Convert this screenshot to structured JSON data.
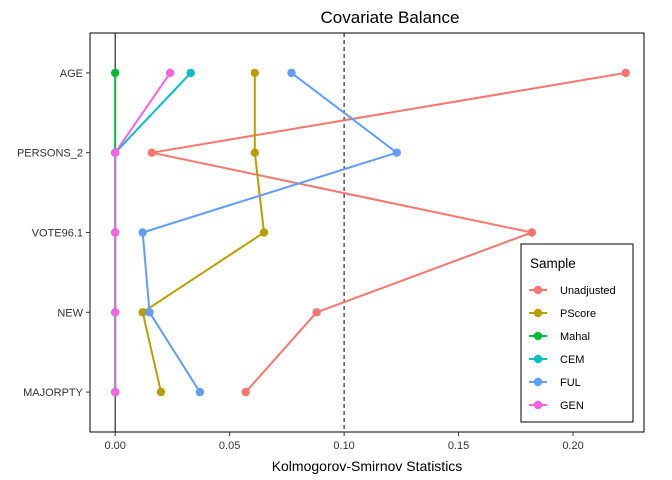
{
  "chart_data": {
    "type": "line",
    "title": "Covariate Balance",
    "xlabel": "Kolmogorov-Smirnov Statistics",
    "ylabel": "",
    "xlim": [
      -0.011,
      0.231
    ],
    "x_ticks": [
      0.0,
      0.05,
      0.1,
      0.15,
      0.2
    ],
    "x_tick_labels": [
      "0.00",
      "0.05",
      "0.10",
      "0.15",
      "0.20"
    ],
    "categories": [
      "AGE",
      "PERSONS_2",
      "VOTE96.1",
      "NEW",
      "MAJORPTY"
    ],
    "reference_lines": [
      {
        "x": 0.0,
        "style": "solid"
      },
      {
        "x": 0.1,
        "style": "dashed"
      }
    ],
    "legend_title": "Sample",
    "legend_position": "right",
    "grid": false,
    "series": [
      {
        "name": "Unadjusted",
        "color": "#F8766D",
        "values": [
          0.223,
          0.016,
          0.182,
          0.088,
          0.057
        ]
      },
      {
        "name": "PScore",
        "color": "#B79F00",
        "values": [
          0.061,
          0.061,
          0.065,
          0.012,
          0.02
        ]
      },
      {
        "name": "Mahal",
        "color": "#00BA38",
        "values": [
          0.0,
          0.0,
          0.0,
          0.0,
          0.0
        ]
      },
      {
        "name": "CEM",
        "color": "#00BFC4",
        "values": [
          0.033,
          0.0,
          0.0,
          0.0,
          0.0
        ]
      },
      {
        "name": "FUL",
        "color": "#619CFF",
        "values": [
          0.077,
          0.123,
          0.012,
          0.015,
          0.037
        ]
      },
      {
        "name": "GEN",
        "color": "#F564E3",
        "values": [
          0.024,
          0.0,
          0.0,
          0.0,
          0.0
        ]
      }
    ]
  }
}
